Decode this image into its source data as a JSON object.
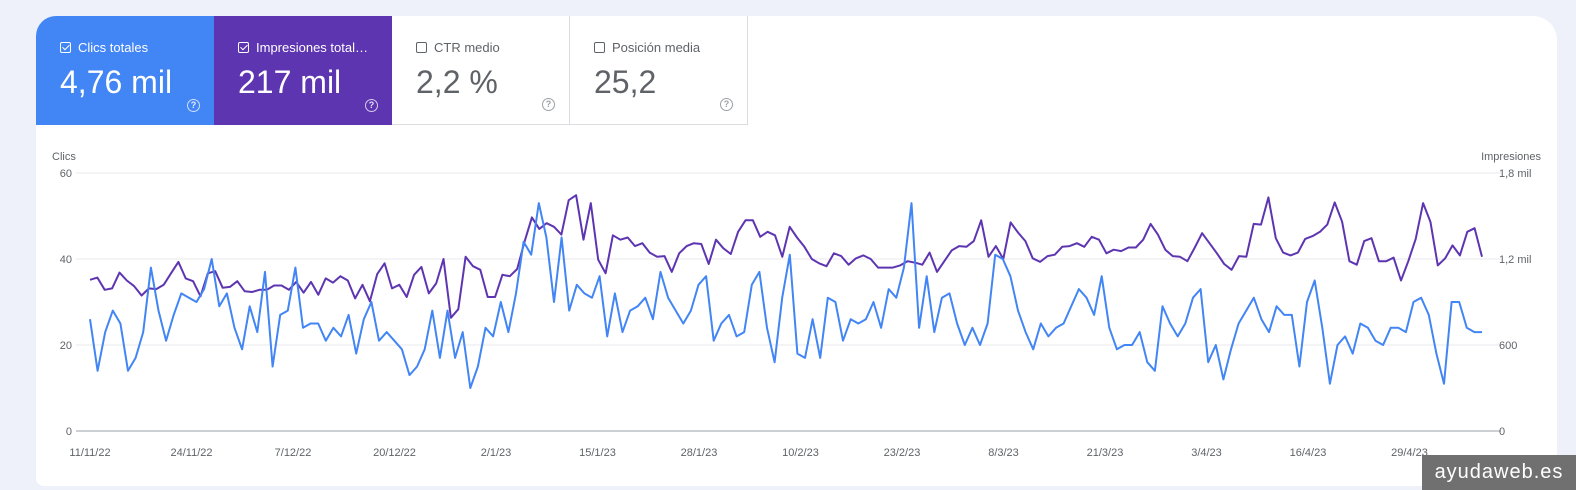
{
  "metrics": [
    {
      "label": "Clics totales",
      "value": "4,76 mil",
      "checked": true,
      "color": "#4285f4"
    },
    {
      "label": "Impresiones total…",
      "value": "217 mil",
      "checked": true,
      "color": "#5e35b1"
    },
    {
      "label": "CTR medio",
      "value": "2,2 %",
      "checked": false
    },
    {
      "label": "Posición media",
      "value": "25,2",
      "checked": false
    }
  ],
  "help_glyph": "?",
  "watermark": "ayudaweb.es",
  "chart_data": {
    "type": "line",
    "left_axis": {
      "title": "Clics",
      "ticks": [
        "0",
        "20",
        "40",
        "60"
      ],
      "ylim": [
        0,
        60
      ]
    },
    "right_axis": {
      "title": "Impresiones",
      "ticks": [
        "0",
        "600",
        "1,2 mil",
        "1,8 mil"
      ],
      "ylim": [
        0,
        1800
      ]
    },
    "x_labels": [
      "11/11/22",
      "24/11/22",
      "7/12/22",
      "20/12/22",
      "2/1/23",
      "15/1/23",
      "28/1/23",
      "10/2/23",
      "23/2/23",
      "8/3/23",
      "21/3/23",
      "3/4/23",
      "16/4/23",
      "29/4/23"
    ],
    "grid": true,
    "series": [
      {
        "name": "Clics",
        "axis": "left",
        "color": "#4285f4",
        "values": [
          26,
          14,
          23,
          28,
          25,
          14,
          17,
          23,
          38,
          28,
          21,
          27,
          32,
          31,
          30,
          33,
          40,
          29,
          32,
          24,
          19,
          29,
          23,
          37,
          15,
          27,
          28,
          38,
          24,
          25,
          25,
          21,
          24,
          22,
          27,
          18,
          26,
          30,
          21,
          23,
          21,
          19,
          13,
          15,
          19,
          28,
          17,
          28,
          17,
          23,
          10,
          15,
          24,
          22,
          30,
          23,
          32,
          44,
          41,
          53,
          45,
          30,
          45,
          28,
          34,
          32,
          31,
          36,
          22,
          32,
          23,
          28,
          29,
          31,
          26,
          37,
          31,
          28,
          25,
          28,
          34,
          36,
          21,
          25,
          27,
          22,
          23,
          34,
          37,
          24,
          16,
          31,
          41,
          18,
          17,
          26,
          17,
          31,
          30,
          21,
          26,
          25,
          26,
          30,
          24,
          33,
          31,
          38,
          53,
          24,
          36,
          23,
          31,
          32,
          25,
          20,
          24,
          20,
          25,
          41,
          40,
          36,
          28,
          23,
          19,
          25,
          22,
          24,
          25,
          29,
          33,
          31,
          27,
          36,
          24,
          19,
          20,
          20,
          23,
          16,
          14,
          29,
          25,
          22,
          25,
          31,
          33,
          16,
          20,
          12,
          19,
          25,
          28,
          31,
          26,
          23,
          29,
          27,
          27,
          15,
          30,
          35,
          24,
          11,
          20,
          22,
          18,
          25,
          24,
          21,
          20,
          24,
          24,
          23,
          30,
          31,
          27,
          18,
          11,
          30,
          30,
          24,
          23,
          23
        ]
      },
      {
        "name": "Impresiones",
        "axis": "right",
        "color": "#5e35b1",
        "values": [
          1055,
          1070,
          985,
          995,
          1105,
          1050,
          1010,
          945,
          995,
          990,
          1020,
          1100,
          1180,
          1065,
          1045,
          940,
          1100,
          1115,
          1000,
          1005,
          1045,
          975,
          970,
          985,
          985,
          1015,
          1015,
          985,
          1040,
          965,
          1040,
          950,
          1065,
          1035,
          1080,
          1050,
          925,
          1020,
          905,
          1095,
          1170,
          995,
          1020,
          935,
          1090,
          1145,
          960,
          1030,
          1200,
          790,
          850,
          1215,
          1150,
          1125,
          935,
          935,
          1090,
          1080,
          1130,
          1320,
          1490,
          1410,
          1450,
          1425,
          1370,
          1610,
          1645,
          1335,
          1590,
          1195,
          1100,
          1365,
          1335,
          1350,
          1290,
          1310,
          1245,
          1215,
          1220,
          1110,
          1240,
          1290,
          1310,
          1305,
          1165,
          1335,
          1275,
          1235,
          1390,
          1470,
          1470,
          1355,
          1390,
          1365,
          1215,
          1425,
          1350,
          1285,
          1200,
          1170,
          1150,
          1240,
          1220,
          1160,
          1205,
          1225,
          1200,
          1140,
          1140,
          1140,
          1155,
          1185,
          1175,
          1160,
          1245,
          1110,
          1185,
          1260,
          1290,
          1285,
          1325,
          1470,
          1215,
          1290,
          1200,
          1455,
          1385,
          1325,
          1205,
          1180,
          1220,
          1230,
          1285,
          1290,
          1310,
          1285,
          1355,
          1335,
          1240,
          1265,
          1255,
          1280,
          1280,
          1335,
          1445,
          1370,
          1265,
          1220,
          1215,
          1185,
          1280,
          1380,
          1310,
          1240,
          1165,
          1125,
          1220,
          1215,
          1445,
          1440,
          1630,
          1345,
          1245,
          1225,
          1245,
          1340,
          1360,
          1390,
          1440,
          1595,
          1460,
          1185,
          1160,
          1325,
          1345,
          1185,
          1185,
          1210,
          1050,
          1185,
          1340,
          1590,
          1460,
          1155,
          1205,
          1295,
          1225,
          1390,
          1415,
          1215
        ]
      }
    ]
  }
}
